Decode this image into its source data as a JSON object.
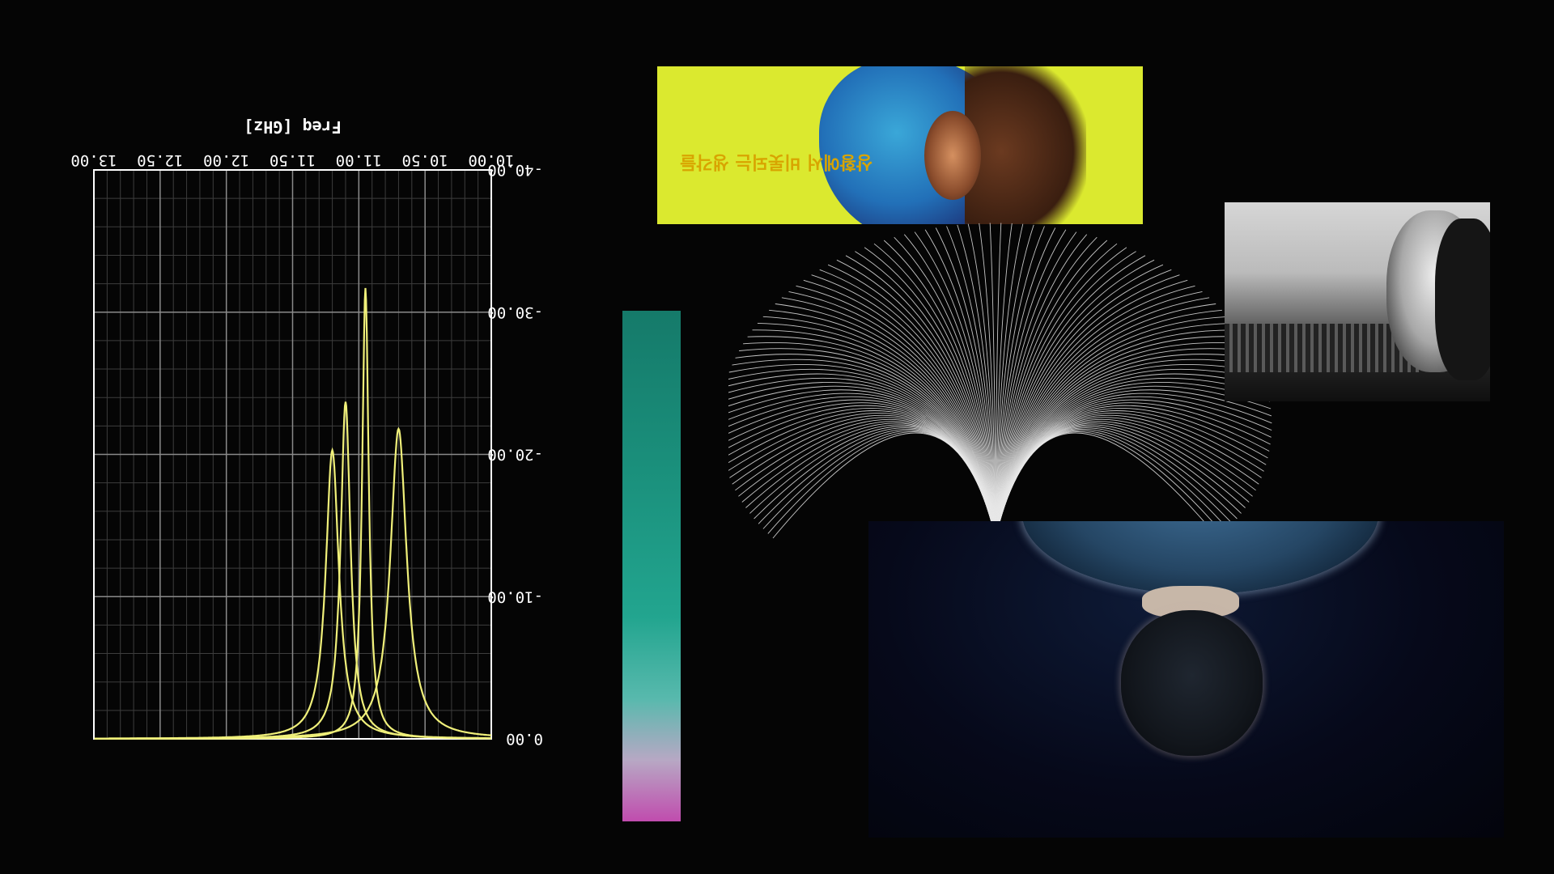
{
  "chart_data": {
    "type": "line",
    "title": "",
    "xlabel": "Freq [GHz]",
    "ylabel": "",
    "x_ticks": [
      "10.00",
      "10.50",
      "11.00",
      "11.50",
      "12.00",
      "12.50",
      "13.00"
    ],
    "y_ticks": [
      "0.00",
      "-10.00",
      "-20.00",
      "-30.00",
      "-40.00"
    ],
    "xlim": [
      10.0,
      13.0
    ],
    "ylim": [
      0,
      -40
    ],
    "grid": true,
    "line_color": "#f0f07a",
    "series": [
      {
        "peak_x": 10.95,
        "peak_y": -31.7
      },
      {
        "peak_x": 11.1,
        "peak_y": -23.7
      },
      {
        "peak_x": 11.2,
        "peak_y": -20.3
      },
      {
        "peak_x": 10.7,
        "peak_y": -21.8
      }
    ]
  },
  "subtitle_text": "상황에서 비롯되는 생각들",
  "colors": {
    "background": "#050505",
    "grid": "#8a8a8a",
    "axis_text": "#ffffff",
    "subtitle": "#d8a400",
    "gradient_top": "#157a6a",
    "gradient_bottom": "#c04cae"
  }
}
